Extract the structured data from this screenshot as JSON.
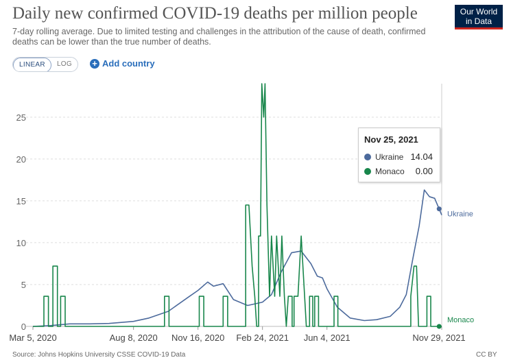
{
  "header": {
    "title": "Daily new confirmed COVID-19 deaths per million people",
    "subtitle": "7-day rolling average. Due to limited testing and challenges in the attribution of the cause of death, confirmed deaths can be lower than the true number of deaths.",
    "logo_line1": "Our World",
    "logo_line2": "in Data"
  },
  "controls": {
    "linear_label": "LINEAR",
    "log_label": "LOG",
    "add_country_label": "Add country"
  },
  "tooltip": {
    "date": "Nov 25, 2021",
    "rows": [
      {
        "name": "Ukraine",
        "value": "14.04",
        "color": "#4c6a9c"
      },
      {
        "name": "Monaco",
        "value": "0.00",
        "color": "#18864b"
      }
    ]
  },
  "footer": {
    "source": "Source: Johns Hopkins University CSSE COVID-19 Data",
    "license": "CC BY"
  },
  "chart_data": {
    "type": "line",
    "x_axis": "date",
    "xticks": [
      "Mar 5, 2020",
      "Aug 8, 2020",
      "Nov 16, 2020",
      "Feb 24, 2021",
      "Jun 4, 2021",
      "Nov 29, 2021"
    ],
    "yticks": [
      0,
      5,
      10,
      15,
      20,
      25
    ],
    "ylim": [
      0,
      29
    ],
    "grid": "horizontal dashed",
    "series": [
      {
        "name": "Ukraine",
        "color": "#4c6a9c",
        "end_label": "Ukraine",
        "points": [
          [
            "2020-03-05",
            0.0
          ],
          [
            "2020-04-01",
            0.1
          ],
          [
            "2020-05-01",
            0.3
          ],
          [
            "2020-06-01",
            0.3
          ],
          [
            "2020-07-01",
            0.35
          ],
          [
            "2020-08-08",
            0.6
          ],
          [
            "2020-09-01",
            1.0
          ],
          [
            "2020-10-01",
            1.8
          ],
          [
            "2020-11-01",
            3.5
          ],
          [
            "2020-11-16",
            4.3
          ],
          [
            "2020-12-01",
            5.3
          ],
          [
            "2020-12-10",
            4.8
          ],
          [
            "2020-12-25",
            5.1
          ],
          [
            "2021-01-10",
            3.2
          ],
          [
            "2021-02-01",
            2.5
          ],
          [
            "2021-02-24",
            2.9
          ],
          [
            "2021-03-10",
            3.8
          ],
          [
            "2021-03-25",
            6.5
          ],
          [
            "2021-04-10",
            8.8
          ],
          [
            "2021-04-25",
            9.0
          ],
          [
            "2021-05-10",
            7.5
          ],
          [
            "2021-05-20",
            6.0
          ],
          [
            "2021-05-28",
            5.8
          ],
          [
            "2021-06-04",
            4.5
          ],
          [
            "2021-06-20",
            2.3
          ],
          [
            "2021-07-10",
            1.0
          ],
          [
            "2021-08-01",
            0.7
          ],
          [
            "2021-08-20",
            0.8
          ],
          [
            "2021-09-10",
            1.2
          ],
          [
            "2021-09-25",
            2.3
          ],
          [
            "2021-10-05",
            3.8
          ],
          [
            "2021-10-15",
            8.0
          ],
          [
            "2021-10-25",
            12.0
          ],
          [
            "2021-11-02",
            16.3
          ],
          [
            "2021-11-10",
            15.5
          ],
          [
            "2021-11-18",
            15.3
          ],
          [
            "2021-11-25",
            14.04
          ],
          [
            "2021-11-29",
            13.3
          ]
        ]
      },
      {
        "name": "Monaco",
        "color": "#18864b",
        "end_label": "Monaco",
        "points": [
          [
            "2020-03-05",
            0
          ],
          [
            "2020-03-22",
            0
          ],
          [
            "2020-03-22",
            3.6
          ],
          [
            "2020-03-29",
            3.6
          ],
          [
            "2020-03-29",
            0
          ],
          [
            "2020-04-05",
            0
          ],
          [
            "2020-04-05",
            7.2
          ],
          [
            "2020-04-12",
            7.2
          ],
          [
            "2020-04-12",
            0
          ],
          [
            "2020-04-17",
            0
          ],
          [
            "2020-04-17",
            3.6
          ],
          [
            "2020-04-24",
            3.6
          ],
          [
            "2020-04-24",
            0
          ],
          [
            "2020-09-25",
            0
          ],
          [
            "2020-09-25",
            3.6
          ],
          [
            "2020-10-02",
            3.6
          ],
          [
            "2020-10-02",
            0
          ],
          [
            "2020-11-18",
            0
          ],
          [
            "2020-11-18",
            3.6
          ],
          [
            "2020-11-25",
            3.6
          ],
          [
            "2020-11-25",
            0
          ],
          [
            "2020-12-25",
            0
          ],
          [
            "2020-12-25",
            3.6
          ],
          [
            "2021-01-01",
            3.6
          ],
          [
            "2021-01-01",
            0
          ],
          [
            "2021-01-29",
            0
          ],
          [
            "2021-01-29",
            14.5
          ],
          [
            "2021-02-03",
            14.5
          ],
          [
            "2021-02-08",
            7.2
          ],
          [
            "2021-02-12",
            3.6
          ],
          [
            "2021-02-15",
            0
          ],
          [
            "2021-02-18",
            0
          ],
          [
            "2021-02-18",
            10.8
          ],
          [
            "2021-02-21",
            10.8
          ],
          [
            "2021-02-23",
            29
          ],
          [
            "2021-02-26",
            25.0
          ],
          [
            "2021-02-28",
            29
          ],
          [
            "2021-03-03",
            14.5
          ],
          [
            "2021-03-07",
            3.6
          ],
          [
            "2021-03-10",
            10.8
          ],
          [
            "2021-03-15",
            3.6
          ],
          [
            "2021-03-18",
            10.8
          ],
          [
            "2021-03-23",
            3.6
          ],
          [
            "2021-03-26",
            10.8
          ],
          [
            "2021-03-30",
            3.6
          ],
          [
            "2021-04-02",
            0
          ],
          [
            "2021-04-05",
            3.6
          ],
          [
            "2021-04-11",
            3.6
          ],
          [
            "2021-04-11",
            0
          ],
          [
            "2021-04-14",
            0
          ],
          [
            "2021-04-14",
            3.6
          ],
          [
            "2021-04-20",
            3.6
          ],
          [
            "2021-04-25",
            10.8
          ],
          [
            "2021-05-03",
            0
          ],
          [
            "2021-05-08",
            0
          ],
          [
            "2021-05-08",
            3.6
          ],
          [
            "2021-05-13",
            3.6
          ],
          [
            "2021-05-13",
            0
          ],
          [
            "2021-05-16",
            0
          ],
          [
            "2021-05-16",
            3.6
          ],
          [
            "2021-05-22",
            3.6
          ],
          [
            "2021-05-22",
            0
          ],
          [
            "2021-06-15",
            0
          ],
          [
            "2021-06-15",
            3.6
          ],
          [
            "2021-06-21",
            3.6
          ],
          [
            "2021-06-21",
            0
          ],
          [
            "2021-10-12",
            0
          ],
          [
            "2021-10-12",
            3.6
          ],
          [
            "2021-10-17",
            7.2
          ],
          [
            "2021-10-21",
            7.2
          ],
          [
            "2021-10-24",
            0
          ],
          [
            "2021-11-06",
            0
          ],
          [
            "2021-11-06",
            3.6
          ],
          [
            "2021-11-12",
            3.6
          ],
          [
            "2021-11-12",
            0
          ],
          [
            "2021-11-29",
            0
          ]
        ]
      }
    ]
  }
}
